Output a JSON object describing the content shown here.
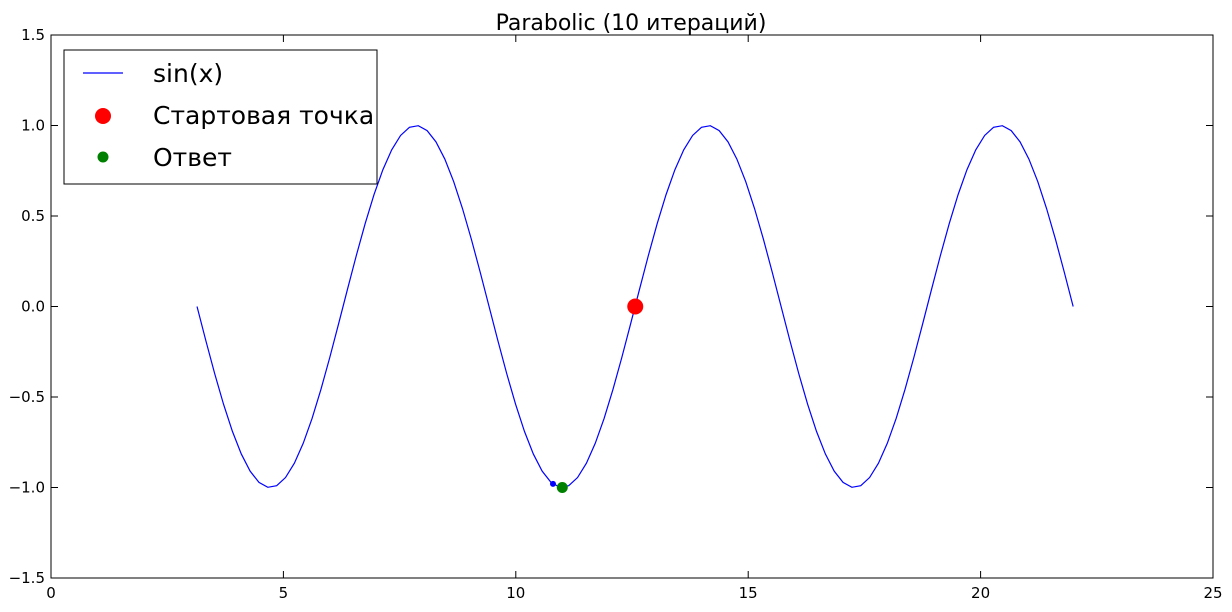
{
  "chart_data": {
    "type": "line",
    "title": "Parabolic (10 итераций)",
    "xlabel": "",
    "ylabel": "",
    "xlim": [
      0,
      25
    ],
    "ylim": [
      -1.5,
      1.5
    ],
    "x_ticks": [
      0,
      5,
      10,
      15,
      20,
      25
    ],
    "y_ticks": [
      -1.5,
      -1.0,
      -0.5,
      0.0,
      0.5,
      1.0,
      1.5
    ],
    "x_tick_labels": [
      "0",
      "5",
      "10",
      "15",
      "20",
      "25"
    ],
    "y_tick_labels": [
      "−1.5",
      "−1.0",
      "−0.5",
      "0.0",
      "0.5",
      "1.0",
      "1.5"
    ],
    "grid": false,
    "legend_position": "top-left",
    "series": [
      {
        "name": "sin(x)",
        "kind": "line",
        "color": "#0000ff",
        "function": "sin(x)",
        "x_range": [
          3.1416,
          21.9911
        ],
        "samples": 100
      },
      {
        "name": "Стартовая точка",
        "kind": "marker",
        "color": "#ff0000",
        "points": [
          {
            "x": 12.57,
            "y": 0.0
          }
        ]
      },
      {
        "name": "Ответ",
        "kind": "marker",
        "color": "#008000",
        "points": [
          {
            "x": 11.0,
            "y": -1.0
          }
        ]
      },
      {
        "kind": "marker",
        "color": "#0000ff",
        "points": [
          {
            "x": 10.8,
            "y": -0.98
          }
        ]
      }
    ],
    "legend": [
      {
        "label": "sin(x)",
        "symbol": "line",
        "color": "#0000ff"
      },
      {
        "label": "Стартовая точка",
        "symbol": "large-dot",
        "color": "#ff0000"
      },
      {
        "label": "Ответ",
        "symbol": "small-dot",
        "color": "#008000"
      }
    ]
  }
}
